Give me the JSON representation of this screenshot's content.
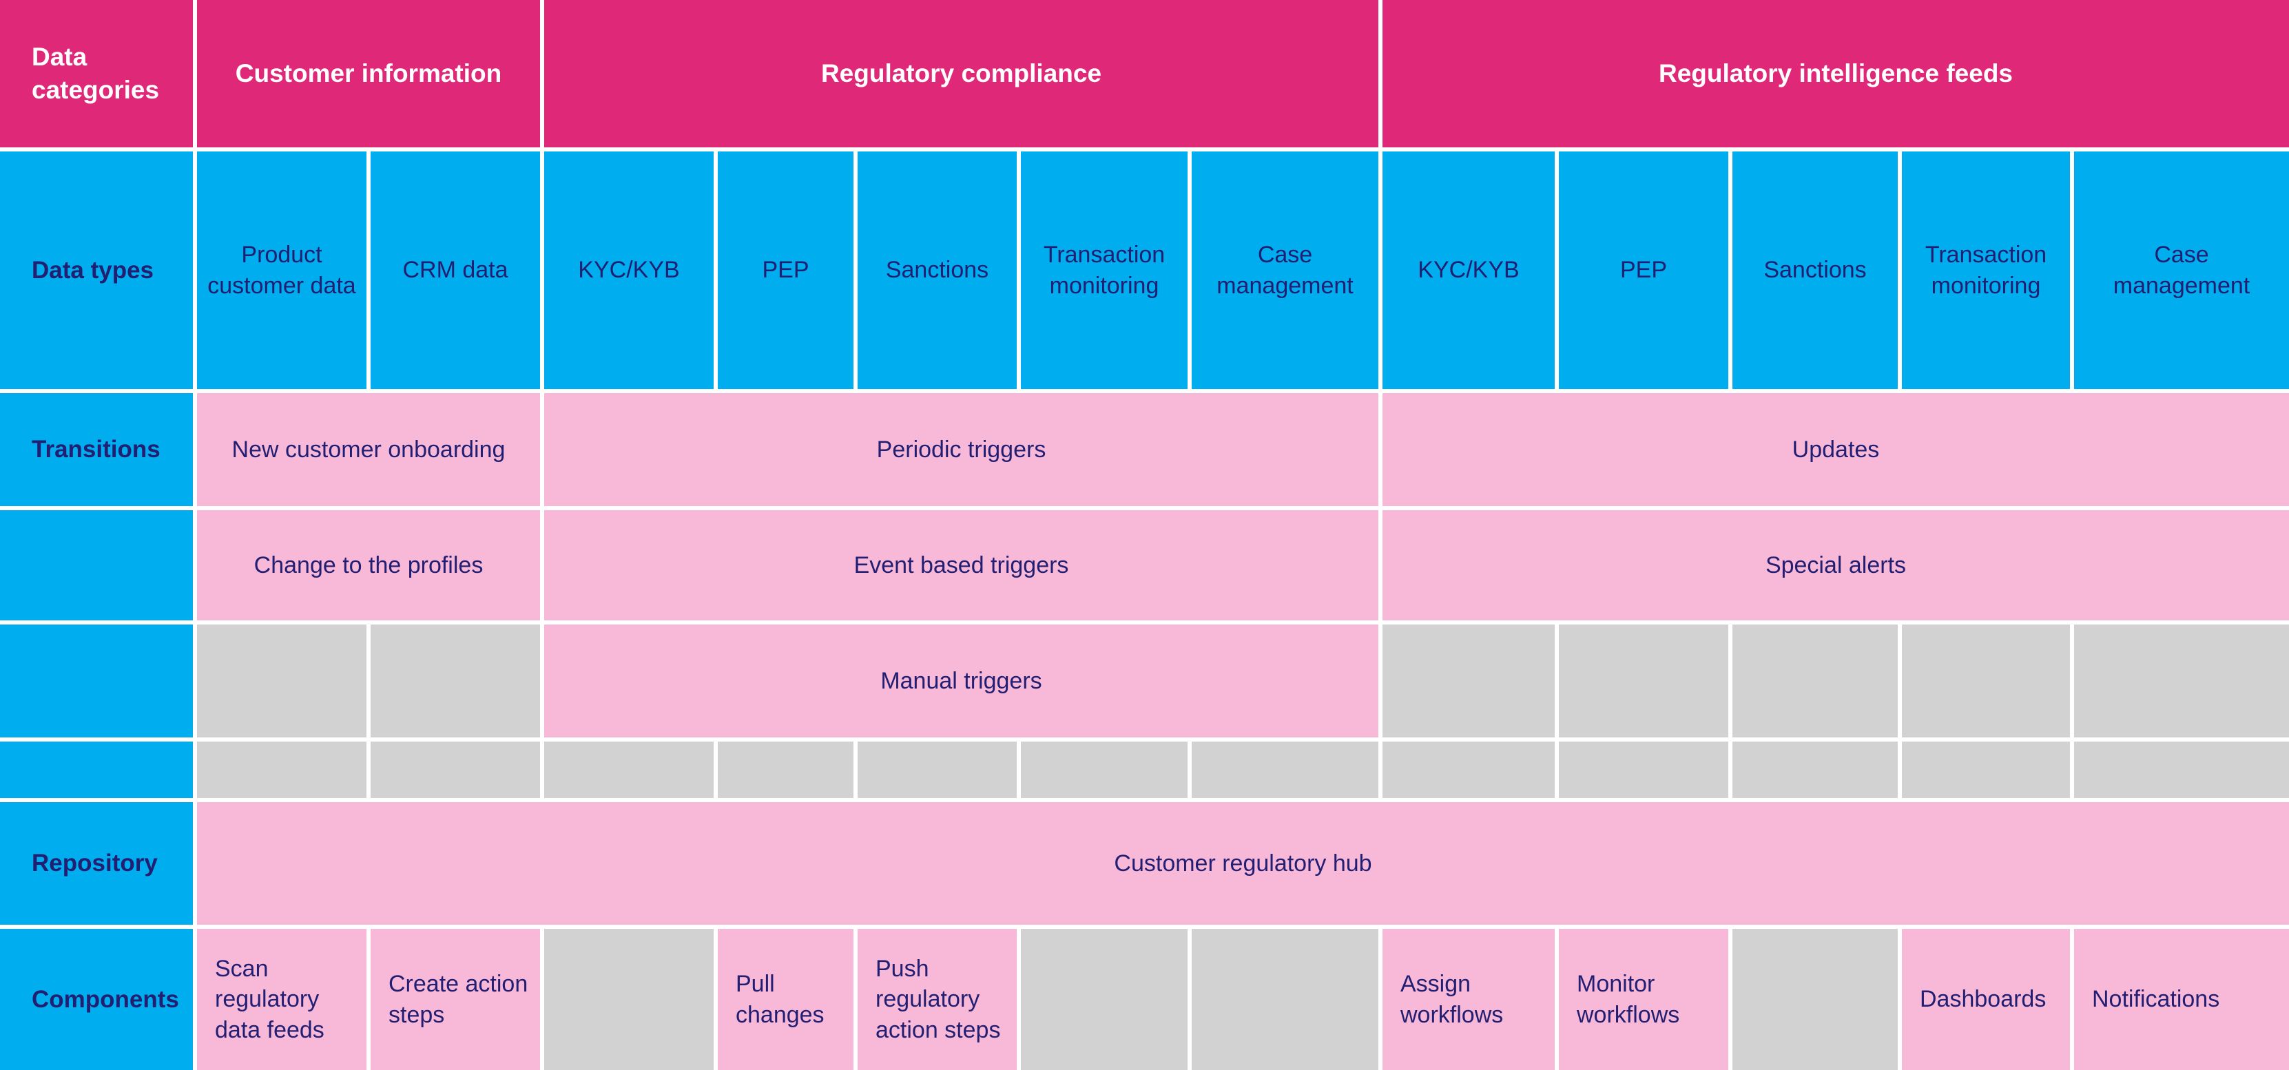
{
  "colors": {
    "header_magenta": "#E02878",
    "label_blue": "#00ADEE",
    "cell_pink": "#F8B8D8",
    "empty_gray": "#D2D2D2",
    "text_navy": "#221F72",
    "text_white": "#FFFFFF"
  },
  "header": {
    "row_label": "Data categories",
    "customer_information": "Customer information",
    "regulatory_compliance": "Regulatory compliance",
    "regulatory_intelligence_feeds": "Regulatory intelligence feeds"
  },
  "data_types": {
    "row_label": "Data types",
    "cells": [
      "Product customer data",
      "CRM data",
      "KYC/KYB",
      "PEP",
      "Sanctions",
      "Transaction monitoring",
      "Case management",
      "KYC/KYB",
      "PEP",
      "Sanctions",
      "Transaction monitoring",
      "Case management"
    ]
  },
  "transitions": {
    "row_label": "Transitions",
    "row1": {
      "customer_information": "New customer onboarding",
      "regulatory_compliance": "Periodic triggers",
      "regulatory_intelligence_feeds": "Updates"
    },
    "row2": {
      "customer_information": "Change to the profiles",
      "regulatory_compliance": "Event based triggers",
      "regulatory_intelligence_feeds": "Special alerts"
    },
    "row3": {
      "regulatory_compliance": "Manual triggers"
    }
  },
  "repository": {
    "row_label": "Repository",
    "hub": "Customer regulatory hub"
  },
  "components": {
    "row_label": "Components",
    "scan_regulatory_data_feeds": "Scan regulatory data feeds",
    "create_action_steps": "Create action steps",
    "pull_changes": "Pull changes",
    "push_regulatory_action_steps": "Push regulatory action steps",
    "assign_workflows": "Assign workflows",
    "monitor_workflows": "Monitor workflows",
    "dashboards": "Dashboards",
    "notifications": "Notifications"
  }
}
